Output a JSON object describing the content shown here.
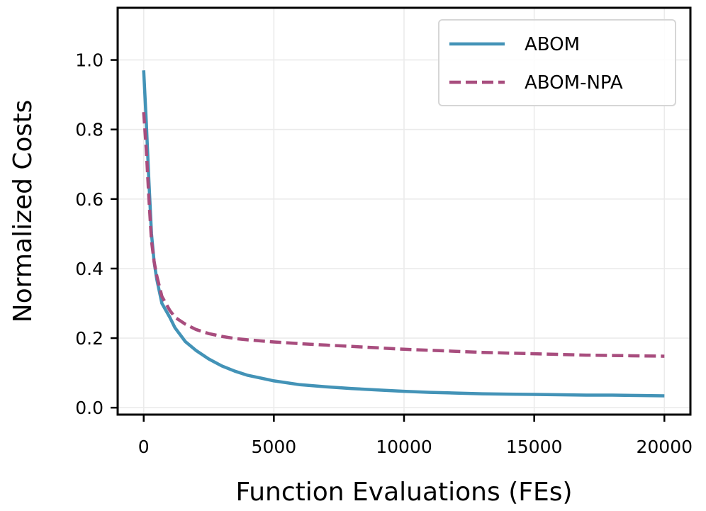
{
  "chart_data": {
    "type": "line",
    "title": "",
    "xlabel": "Function Evaluations (FEs)",
    "ylabel": "Normalized Costs",
    "xlim": [
      -1000,
      21000
    ],
    "ylim": [
      -0.02,
      1.15
    ],
    "grid": true,
    "legend_position": "top-right",
    "xticks": [
      0,
      5000,
      10000,
      15000,
      20000
    ],
    "xtick_labels": [
      "0",
      "5000",
      "10000",
      "15000",
      "20000"
    ],
    "yticks": [
      0.0,
      0.2,
      0.4,
      0.6,
      0.8,
      1.0
    ],
    "ytick_labels": [
      "0.0",
      "0.2",
      "0.4",
      "0.6",
      "0.8",
      "1.0"
    ],
    "series": [
      {
        "name": "ABOM",
        "color": "#4393b7",
        "style": "solid",
        "x": [
          0,
          100,
          200,
          300,
          400,
          500,
          700,
          1000,
          1200,
          1600,
          2000,
          2500,
          3000,
          3500,
          4000,
          5000,
          6000,
          7000,
          8000,
          9000,
          10000,
          11000,
          12000,
          13000,
          14000,
          15000,
          16000,
          17000,
          18000,
          19000,
          20000
        ],
        "y": [
          0.97,
          0.82,
          0.65,
          0.5,
          0.42,
          0.37,
          0.3,
          0.26,
          0.23,
          0.19,
          0.165,
          0.14,
          0.12,
          0.105,
          0.093,
          0.077,
          0.066,
          0.06,
          0.055,
          0.051,
          0.047,
          0.044,
          0.042,
          0.04,
          0.039,
          0.038,
          0.037,
          0.036,
          0.036,
          0.035,
          0.034
        ]
      },
      {
        "name": "ABOM-NPA",
        "color": "#a84d7e",
        "style": "dashed",
        "x": [
          0,
          100,
          200,
          300,
          400,
          500,
          700,
          1000,
          1200,
          1600,
          2000,
          2500,
          3000,
          3500,
          4000,
          5000,
          6000,
          7000,
          8000,
          9000,
          10000,
          11000,
          12000,
          13000,
          14000,
          15000,
          16000,
          17000,
          18000,
          19000,
          20000
        ],
        "y": [
          0.85,
          0.74,
          0.6,
          0.48,
          0.42,
          0.38,
          0.32,
          0.28,
          0.26,
          0.24,
          0.225,
          0.213,
          0.205,
          0.199,
          0.195,
          0.189,
          0.184,
          0.18,
          0.176,
          0.172,
          0.168,
          0.165,
          0.162,
          0.159,
          0.157,
          0.155,
          0.153,
          0.151,
          0.15,
          0.149,
          0.148
        ]
      }
    ]
  }
}
